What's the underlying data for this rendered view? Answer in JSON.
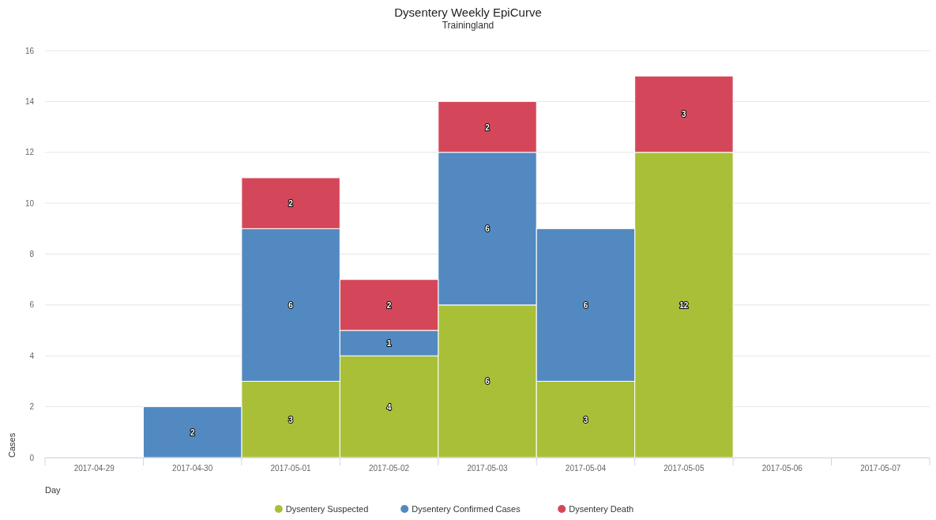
{
  "chart_data": {
    "type": "bar",
    "title": "Dysentery Weekly EpiCurve",
    "subtitle": "Trainingland",
    "xlabel": "Day",
    "ylabel": "Cases",
    "categories": [
      "2017-04-29",
      "2017-04-30",
      "2017-05-01",
      "2017-05-02",
      "2017-05-03",
      "2017-05-04",
      "2017-05-05",
      "2017-05-06",
      "2017-05-07"
    ],
    "stacked": true,
    "ylim": [
      0,
      16
    ],
    "yticks": [
      0,
      2,
      4,
      6,
      8,
      10,
      12,
      14,
      16
    ],
    "grid": "y",
    "legend": "bottom",
    "data_labels": true,
    "series": [
      {
        "name": "Dysentery Suspected",
        "color": "#a9bf38",
        "values": [
          null,
          null,
          3,
          4,
          6,
          3,
          12,
          null,
          null
        ]
      },
      {
        "name": "Dysentery Confirmed Cases",
        "color": "#5289c0",
        "values": [
          null,
          2,
          6,
          1,
          6,
          6,
          null,
          null,
          null
        ]
      },
      {
        "name": "Dysentery Death",
        "color": "#d4475a",
        "values": [
          null,
          null,
          2,
          2,
          2,
          null,
          3,
          null,
          null
        ]
      }
    ]
  }
}
